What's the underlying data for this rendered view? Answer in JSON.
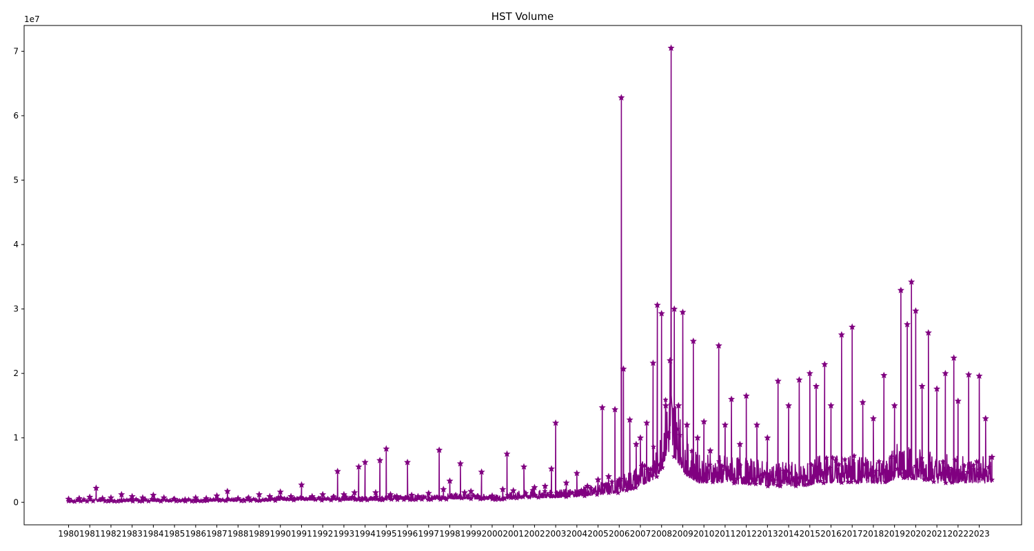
{
  "chart_data": {
    "type": "line",
    "title": "HST Volume",
    "xlabel": "",
    "ylabel": "",
    "y_scale_label": "1e7",
    "marker": "star",
    "color": "#800080",
    "grid": false,
    "xlim": [
      1977.9,
      2025.0
    ],
    "ylim": [
      -3500000,
      74000000
    ],
    "x_ticks": [
      1980,
      1981,
      1982,
      1983,
      1984,
      1985,
      1986,
      1987,
      1988,
      1989,
      1990,
      1991,
      1992,
      1993,
      1994,
      1995,
      1996,
      1997,
      1998,
      1999,
      2000,
      2001,
      2002,
      2003,
      2004,
      2005,
      2006,
      2007,
      2008,
      2009,
      2010,
      2011,
      2012,
      2013,
      2014,
      2015,
      2016,
      2017,
      2018,
      2019,
      2020,
      2021,
      2022,
      2023
    ],
    "y_ticks": [
      0,
      10000000,
      20000000,
      30000000,
      40000000,
      50000000,
      60000000,
      70000000
    ],
    "y_tick_labels": [
      "0",
      "1",
      "2",
      "3",
      "4",
      "5",
      "6",
      "7"
    ],
    "series": [
      {
        "x": [
          1980.0,
          1980.5,
          1981.0,
          1981.3,
          1981.6,
          1982.0,
          1982.5,
          1983.0,
          1983.5,
          1984.0,
          1984.5,
          1985.0,
          1985.5,
          1986.0,
          1986.5,
          1987.0,
          1987.5,
          1988.0,
          1988.5,
          1989.0,
          1989.5,
          1990.0,
          1990.5,
          1991.0,
          1991.5,
          1992.0,
          1992.5,
          1992.7,
          1993.0,
          1993.5,
          1993.7,
          1994.0,
          1994.5,
          1994.7,
          1995.0,
          1995.2,
          1995.5,
          1996.0,
          1996.2,
          1996.5,
          1997.0,
          1997.5,
          1997.7,
          1998.0,
          1998.5,
          1998.7,
          1999.0,
          1999.5,
          2000.0,
          2000.5,
          2000.7,
          2001.0,
          2001.5,
          2002.0,
          2002.5,
          2002.8,
          2003.0,
          2003.5,
          2004.0,
          2004.5,
          2005.0,
          2005.2,
          2005.5,
          2005.8,
          2006.0,
          2006.1,
          2006.2,
          2006.5,
          2006.8,
          2007.0,
          2007.3,
          2007.6,
          2007.8,
          2008.0,
          2008.2,
          2008.4,
          2008.45,
          2008.6,
          2008.8,
          2009.0,
          2009.2,
          2009.5,
          2009.7,
          2010.0,
          2010.3,
          2010.7,
          2011.0,
          2011.3,
          2011.7,
          2012.0,
          2012.5,
          2013.0,
          2013.5,
          2014.0,
          2014.5,
          2015.0,
          2015.3,
          2015.7,
          2016.0,
          2016.5,
          2017.0,
          2017.5,
          2018.0,
          2018.5,
          2019.0,
          2019.3,
          2019.6,
          2019.8,
          2020.0,
          2020.3,
          2020.6,
          2021.0,
          2021.4,
          2021.8,
          2022.0,
          2022.5,
          2023.0,
          2023.3,
          2023.6
        ],
        "y": [
          500000,
          600000,
          800000,
          2200000,
          600000,
          700000,
          1200000,
          900000,
          700000,
          1100000,
          700000,
          500000,
          400000,
          700000,
          600000,
          1000000,
          1700000,
          600000,
          700000,
          1200000,
          900000,
          1600000,
          900000,
          2700000,
          900000,
          1200000,
          800000,
          4800000,
          1200000,
          1500000,
          5500000,
          6200000,
          1500000,
          6500000,
          8300000,
          1200000,
          900000,
          6200000,
          1100000,
          900000,
          1400000,
          8100000,
          2000000,
          3300000,
          6000000,
          1500000,
          1700000,
          4700000,
          1000000,
          2000000,
          7500000,
          1800000,
          5500000,
          2300000,
          2500000,
          5200000,
          12300000,
          3000000,
          4500000,
          2500000,
          3500000,
          14700000,
          4000000,
          14400000,
          3500000,
          62800000,
          20700000,
          12800000,
          9000000,
          10000000,
          12300000,
          21600000,
          30600000,
          29300000,
          15000000,
          22000000,
          70500000,
          30000000,
          15000000,
          29500000,
          12000000,
          25000000,
          10000000,
          12500000,
          8000000,
          24300000,
          12000000,
          16000000,
          9000000,
          16500000,
          12000000,
          10000000,
          18800000,
          15000000,
          19000000,
          20000000,
          18000000,
          21400000,
          15000000,
          26000000,
          27200000,
          15500000,
          13000000,
          19700000,
          15000000,
          32900000,
          27600000,
          34200000,
          29700000,
          18000000,
          26300000,
          17600000,
          20000000,
          22400000,
          15700000,
          19800000,
          19600000,
          13000000,
          7000000
        ],
        "y_min_envelope": [
          100000,
          100000,
          150000,
          150000,
          150000,
          150000,
          150000,
          150000,
          150000,
          150000,
          150000,
          150000,
          150000,
          150000,
          150000,
          200000,
          200000,
          200000,
          200000,
          200000,
          200000,
          300000,
          300000,
          300000,
          300000,
          300000,
          300000,
          300000,
          300000,
          300000,
          300000,
          300000,
          300000,
          300000,
          400000,
          400000,
          400000,
          400000,
          400000,
          400000,
          400000,
          400000,
          400000,
          500000,
          500000,
          500000,
          500000,
          500000,
          400000,
          400000,
          500000,
          600000,
          700000,
          700000,
          700000,
          700000,
          700000,
          800000,
          900000,
          1000000,
          1200000,
          1200000,
          1300000,
          1400000,
          1500000,
          1600000,
          1700000,
          2000000,
          2300000,
          2500000,
          3000000,
          3500000,
          4000000,
          5000000,
          7000000,
          8000000,
          8500000,
          7000000,
          6000000,
          5000000,
          4000000,
          3500000,
          3000000,
          3000000,
          3000000,
          3000000,
          3000000,
          3000000,
          2800000,
          2800000,
          2800000,
          2500000,
          2500000,
          2500000,
          2500000,
          2500000,
          3000000,
          3000000,
          3000000,
          3000000,
          3000000,
          3000000,
          3000000,
          2800000,
          3500000,
          4000000,
          3500000,
          3500000,
          3500000,
          3500000,
          3500000,
          3000000,
          3000000,
          3000000,
          3000000,
          3000000,
          3000000,
          3000000,
          3000000
        ]
      }
    ]
  }
}
